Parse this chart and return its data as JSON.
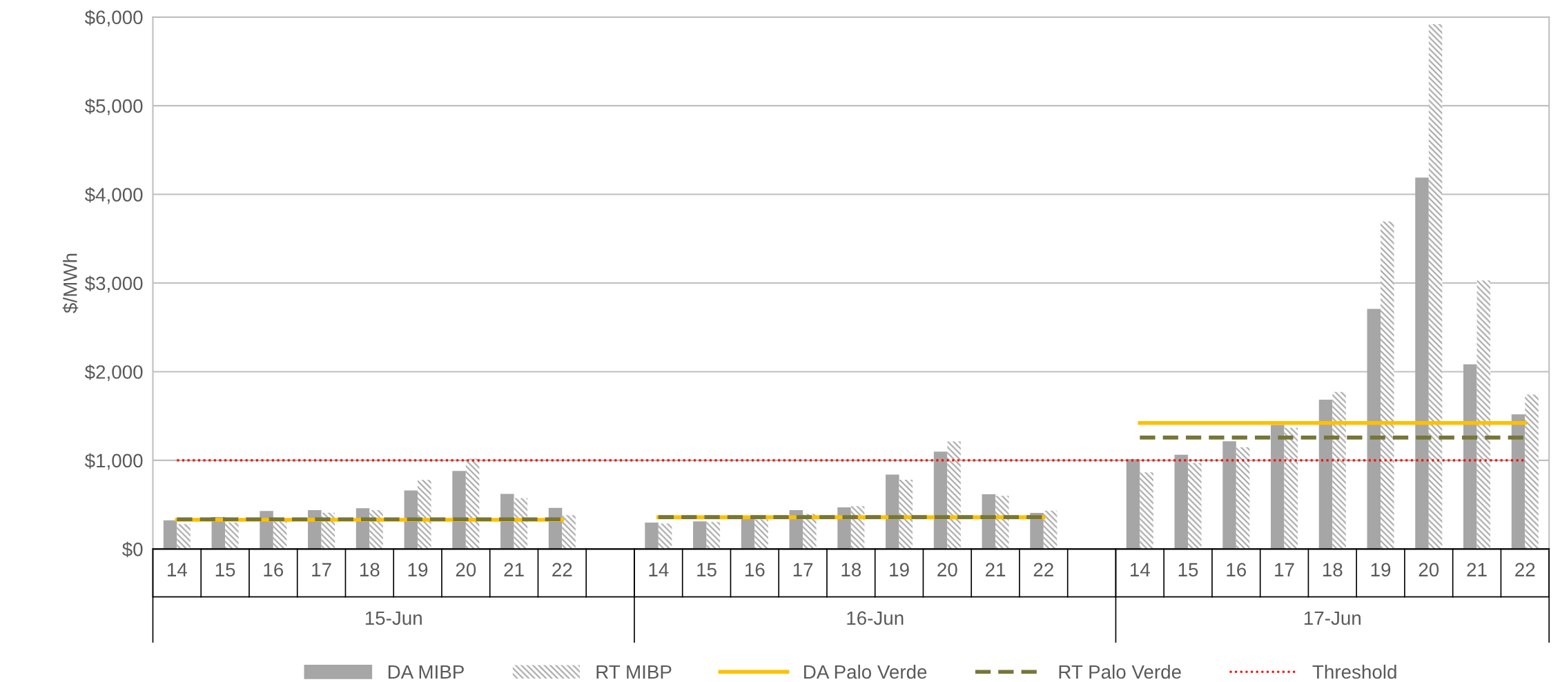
{
  "chart_data": {
    "type": "bar",
    "ylabel": "$/MWh",
    "categories": [
      "14",
      "15",
      "16",
      "17",
      "18",
      "19",
      "20",
      "21",
      "22",
      null,
      "14",
      "15",
      "16",
      "17",
      "18",
      "19",
      "20",
      "21",
      "22",
      null,
      "14",
      "15",
      "16",
      "17",
      "18",
      "19",
      "20",
      "21",
      "22"
    ],
    "series": [
      {
        "name": "DA MIBP",
        "color": "#a6a6a6",
        "values": [
          323,
          361,
          428,
          439,
          460,
          660,
          881,
          621,
          463,
          null,
          298,
          312,
          350,
          439,
          470,
          839,
          1098,
          618,
          407,
          null,
          1013,
          1063,
          1215,
          1401,
          1684,
          2709,
          4190,
          2084,
          1519
        ]
      },
      {
        "name": "RT MIBP",
        "color": "#a6a6a6",
        "values": [
          281,
          298,
          333,
          410,
          439,
          779,
          1018,
          572,
          382,
          null,
          288,
          305,
          333,
          396,
          484,
          782,
          1214,
          600,
          432,
          null,
          865,
          970,
          1148,
          1367,
          1772,
          3696,
          5920,
          3030,
          1743
        ]
      },
      {
        "name": "DA Palo Verde",
        "type": "line",
        "color": "#ffc000",
        "line_style": "solid",
        "values": [
          330,
          330,
          330,
          330,
          330,
          330,
          330,
          330,
          330,
          null,
          358,
          358,
          358,
          358,
          358,
          358,
          358,
          358,
          358,
          null,
          1422,
          1422,
          1422,
          1422,
          1422,
          1422,
          1422,
          1422,
          1422
        ]
      },
      {
        "name": "RT Palo Verde",
        "type": "line",
        "color": "#767638",
        "line_style": "dashed",
        "values": [
          335,
          335,
          335,
          335,
          335,
          335,
          335,
          335,
          335,
          null,
          360,
          360,
          360,
          360,
          360,
          360,
          360,
          360,
          360,
          null,
          1257,
          1257,
          1257,
          1257,
          1257,
          1257,
          1257,
          1257,
          1257
        ]
      },
      {
        "name": "Threshold",
        "type": "line",
        "color": "#ff0000",
        "line_style": "dotted",
        "values": [
          1000,
          1000,
          1000,
          1000,
          1000,
          1000,
          1000,
          1000,
          1000,
          1000,
          1000,
          1000,
          1000,
          1000,
          1000,
          1000,
          1000,
          1000,
          1000,
          1000,
          1000,
          1000,
          1000,
          1000,
          1000,
          1000,
          1000,
          1000,
          1000
        ]
      }
    ],
    "annotations": [
      "15-Jun",
      "16-Jun",
      "17-Jun"
    ],
    "ylim": [
      0,
      6000
    ],
    "yticks": [
      {
        "value": 0,
        "label": "$0"
      },
      {
        "value": 1000,
        "label": "$1,000"
      },
      {
        "value": 2000,
        "label": "$2,000"
      },
      {
        "value": 3000,
        "label": "$3,000"
      },
      {
        "value": 4000,
        "label": "$4,000"
      },
      {
        "value": 5000,
        "label": "$5,000"
      },
      {
        "value": 6000,
        "label": "$6,000"
      }
    ],
    "grid": "y",
    "legend": "bottom"
  }
}
